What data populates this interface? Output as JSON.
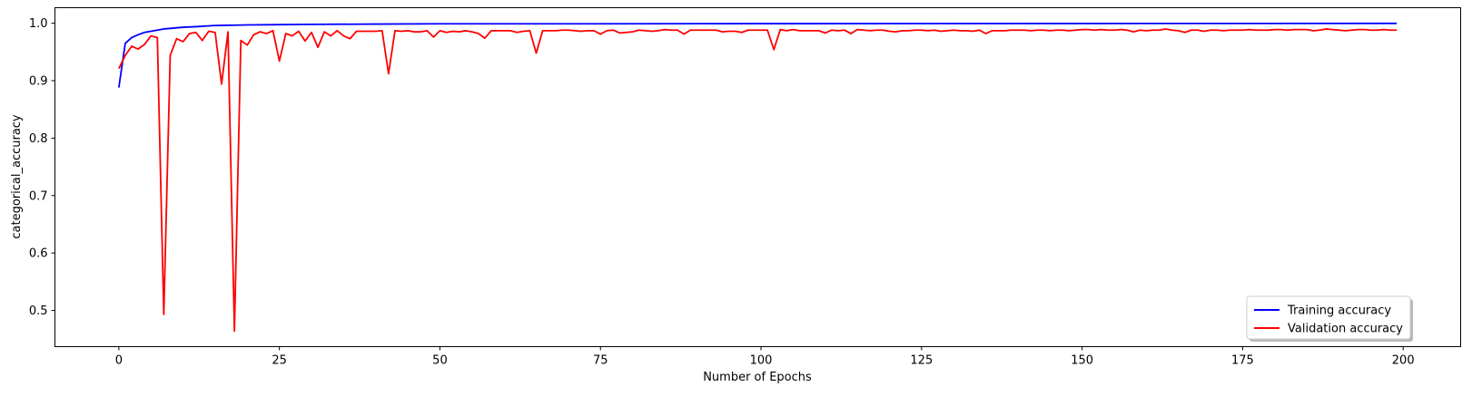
{
  "chart_data": {
    "type": "line",
    "xlabel": "Number of Epochs",
    "ylabel": "categorical_accuracy",
    "xlim": [
      -9.95,
      208.95
    ],
    "ylim": [
      0.437,
      1.027
    ],
    "xticks": [
      0,
      25,
      50,
      75,
      100,
      125,
      150,
      175,
      200
    ],
    "yticks": [
      0.5,
      0.6,
      0.7,
      0.8,
      0.9,
      1.0
    ],
    "xtick_labels": [
      "0",
      "25",
      "50",
      "75",
      "100",
      "125",
      "150",
      "175",
      "200"
    ],
    "ytick_labels": [
      "0.5",
      "0.6",
      "0.7",
      "0.8",
      "0.9",
      "1.0"
    ],
    "grid": false,
    "legend_position": "lower-right",
    "series": [
      {
        "name": "Training accuracy",
        "color": "#0000ff",
        "x": [
          0,
          1,
          2,
          3,
          4,
          5,
          6,
          7,
          8,
          10,
          12,
          15,
          20,
          25,
          30,
          40,
          50,
          75,
          100,
          125,
          150,
          175,
          199
        ],
        "y": [
          0.888,
          0.965,
          0.975,
          0.98,
          0.984,
          0.986,
          0.988,
          0.99,
          0.991,
          0.993,
          0.994,
          0.996,
          0.997,
          0.9975,
          0.998,
          0.9985,
          0.999,
          0.999,
          0.9993,
          0.9994,
          0.9995,
          0.9996,
          0.9997
        ]
      },
      {
        "name": "Validation accuracy",
        "color": "#ff0000",
        "x": [
          0,
          1,
          2,
          3,
          4,
          5,
          6,
          7,
          8,
          9,
          10,
          11,
          12,
          13,
          14,
          15,
          16,
          17,
          18,
          19,
          20,
          21,
          22,
          23,
          24,
          25,
          26,
          27,
          28,
          29,
          30,
          31,
          32,
          33,
          34,
          35,
          36,
          37,
          38,
          39,
          40,
          41,
          42,
          43,
          44,
          45,
          46,
          47,
          48,
          49,
          50,
          51,
          52,
          53,
          54,
          55,
          56,
          57,
          58,
          59,
          60,
          61,
          62,
          63,
          64,
          65,
          66,
          67,
          68,
          69,
          70,
          71,
          72,
          73,
          74,
          75,
          76,
          77,
          78,
          79,
          80,
          81,
          82,
          83,
          84,
          85,
          86,
          87,
          88,
          89,
          90,
          91,
          92,
          93,
          94,
          95,
          96,
          97,
          98,
          99,
          100,
          101,
          102,
          103,
          104,
          105,
          106,
          107,
          108,
          109,
          110,
          111,
          112,
          113,
          114,
          115,
          116,
          117,
          118,
          119,
          120,
          121,
          122,
          123,
          124,
          125,
          126,
          127,
          128,
          129,
          130,
          131,
          132,
          133,
          134,
          135,
          136,
          137,
          138,
          139,
          140,
          141,
          142,
          143,
          144,
          145,
          146,
          147,
          148,
          149,
          150,
          151,
          152,
          153,
          154,
          155,
          156,
          157,
          158,
          159,
          160,
          161,
          162,
          163,
          164,
          165,
          166,
          167,
          168,
          169,
          170,
          171,
          172,
          173,
          174,
          175,
          176,
          177,
          178,
          179,
          180,
          181,
          182,
          183,
          184,
          185,
          186,
          187,
          188,
          189,
          190,
          191,
          192,
          193,
          194,
          195,
          196,
          197,
          198,
          199
        ],
        "y": [
          0.921,
          0.944,
          0.96,
          0.955,
          0.963,
          0.978,
          0.975,
          0.493,
          0.944,
          0.973,
          0.968,
          0.982,
          0.984,
          0.97,
          0.986,
          0.984,
          0.894,
          0.985,
          0.464,
          0.97,
          0.962,
          0.98,
          0.985,
          0.982,
          0.987,
          0.934,
          0.982,
          0.978,
          0.986,
          0.969,
          0.984,
          0.958,
          0.985,
          0.978,
          0.987,
          0.978,
          0.973,
          0.986,
          0.986,
          0.986,
          0.986,
          0.987,
          0.912,
          0.987,
          0.986,
          0.987,
          0.985,
          0.985,
          0.987,
          0.976,
          0.987,
          0.984,
          0.986,
          0.985,
          0.987,
          0.985,
          0.982,
          0.974,
          0.987,
          0.987,
          0.987,
          0.987,
          0.984,
          0.986,
          0.987,
          0.948,
          0.987,
          0.987,
          0.987,
          0.988,
          0.988,
          0.987,
          0.986,
          0.987,
          0.987,
          0.981,
          0.987,
          0.988,
          0.983,
          0.984,
          0.985,
          0.988,
          0.987,
          0.986,
          0.987,
          0.989,
          0.988,
          0.988,
          0.981,
          0.988,
          0.988,
          0.988,
          0.988,
          0.988,
          0.985,
          0.986,
          0.986,
          0.984,
          0.988,
          0.988,
          0.988,
          0.988,
          0.954,
          0.989,
          0.987,
          0.989,
          0.987,
          0.987,
          0.987,
          0.987,
          0.983,
          0.988,
          0.987,
          0.988,
          0.982,
          0.989,
          0.988,
          0.987,
          0.988,
          0.988,
          0.986,
          0.985,
          0.987,
          0.987,
          0.988,
          0.988,
          0.987,
          0.988,
          0.986,
          0.987,
          0.988,
          0.987,
          0.987,
          0.986,
          0.988,
          0.982,
          0.987,
          0.987,
          0.987,
          0.988,
          0.988,
          0.988,
          0.987,
          0.988,
          0.988,
          0.987,
          0.988,
          0.988,
          0.987,
          0.988,
          0.989,
          0.989,
          0.988,
          0.989,
          0.988,
          0.988,
          0.989,
          0.988,
          0.985,
          0.988,
          0.987,
          0.988,
          0.988,
          0.99,
          0.988,
          0.987,
          0.984,
          0.988,
          0.988,
          0.986,
          0.988,
          0.988,
          0.987,
          0.988,
          0.988,
          0.988,
          0.989,
          0.988,
          0.988,
          0.988,
          0.989,
          0.989,
          0.988,
          0.989,
          0.989,
          0.989,
          0.987,
          0.988,
          0.99,
          0.989,
          0.988,
          0.987,
          0.988,
          0.989,
          0.989,
          0.988,
          0.988,
          0.989,
          0.988,
          0.988
        ]
      }
    ]
  }
}
